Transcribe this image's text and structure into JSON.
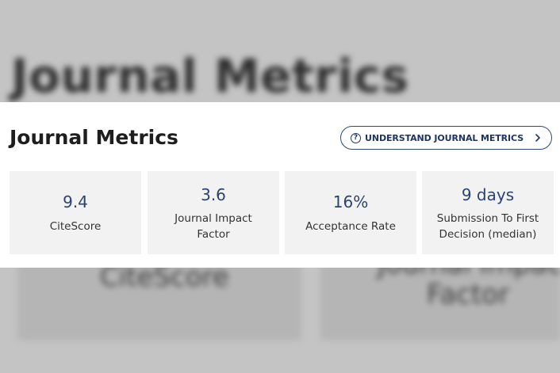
{
  "background": {
    "title": "Journal Metrics",
    "labels": [
      "CiteScore",
      "Journal Impact",
      "Factor"
    ]
  },
  "header": {
    "title": "Journal Metrics",
    "understand_button": {
      "label": "UNDERSTAND JOURNAL METRICS",
      "icon": "question-circle-icon",
      "trailing_icon": "chevron-right-icon"
    }
  },
  "metrics": [
    {
      "value": "9.4",
      "label": "CiteScore"
    },
    {
      "value": "3.6",
      "label": "Journal Impact Factor"
    },
    {
      "value": "16%",
      "label": "Acceptance Rate"
    },
    {
      "value": "9 days",
      "label": "Submission To First Decision (median)"
    }
  ],
  "colors": {
    "accent": "#1f3560",
    "value_text": "#2a4370",
    "card_bg": "#f2f2f2",
    "backdrop": "#c4c4c4"
  }
}
